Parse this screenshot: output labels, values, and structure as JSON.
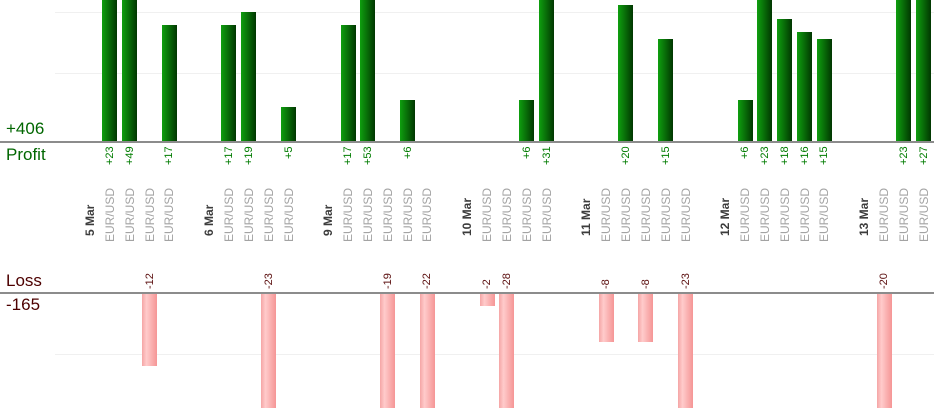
{
  "colors": {
    "profit_text": "#006600",
    "profit_value_text": "#007c00",
    "loss_text": "#4d0000",
    "loss_value_text": "#5c1010",
    "date_text": "#3c3c3c",
    "symbol_text": "#a3a3a3",
    "axis_line": "#8c8c8c",
    "gridline": "#f0f0f0",
    "profit_bar_start": "#0f9f0f",
    "profit_bar_mid": "#0c8a0c",
    "profit_bar_end": "#013701",
    "loss_bar_start": "#f5a5a5",
    "loss_bar_mid": "#ffcbcb",
    "loss_bar_end": "#f59595"
  },
  "chart_data": {
    "type": "bar",
    "layout": "split-axes: profits drawn upward from upper baseline, losses drawn downward from lower baseline, grouped by day",
    "profit_axis": {
      "label": "Profit",
      "total": "+406",
      "total_value": 406
    },
    "loss_axis": {
      "label": "Loss",
      "total": "-165",
      "total_value": -165
    },
    "groups": [
      {
        "date": "5 Mar",
        "trades": [
          {
            "symbol": "EUR/USD",
            "value": 23,
            "label": "+23"
          },
          {
            "symbol": "EUR/USD",
            "value": 49,
            "label": "+49"
          },
          {
            "symbol": "EUR/USD",
            "value": -12,
            "label": "-12"
          },
          {
            "symbol": "EUR/USD",
            "value": 17,
            "label": "+17"
          }
        ]
      },
      {
        "date": "6 Mar",
        "trades": [
          {
            "symbol": "EUR/USD",
            "value": 17,
            "label": "+17"
          },
          {
            "symbol": "EUR/USD",
            "value": 19,
            "label": "+19"
          },
          {
            "symbol": "EUR/USD",
            "value": -23,
            "label": "-23"
          },
          {
            "symbol": "EUR/USD",
            "value": 5,
            "label": "+5"
          }
        ]
      },
      {
        "date": "9 Mar",
        "trades": [
          {
            "symbol": "EUR/USD",
            "value": 17,
            "label": "+17"
          },
          {
            "symbol": "EUR/USD",
            "value": 53,
            "label": "+53"
          },
          {
            "symbol": "EUR/USD",
            "value": -19,
            "label": "-19"
          },
          {
            "symbol": "EUR/USD",
            "value": 6,
            "label": "+6"
          },
          {
            "symbol": "EUR/USD",
            "value": -22,
            "label": "-22"
          }
        ]
      },
      {
        "date": "10 Mar",
        "trades": [
          {
            "symbol": "EUR/USD",
            "value": -2,
            "label": "-2"
          },
          {
            "symbol": "EUR/USD",
            "value": -28,
            "label": "-28"
          },
          {
            "symbol": "EUR/USD",
            "value": 6,
            "label": "+6"
          },
          {
            "symbol": "EUR/USD",
            "value": 31,
            "label": "+31"
          }
        ]
      },
      {
        "date": "11 Mar",
        "trades": [
          {
            "symbol": "EUR/USD",
            "value": -8,
            "label": "-8"
          },
          {
            "symbol": "EUR/USD",
            "value": 20,
            "label": "+20"
          },
          {
            "symbol": "EUR/USD",
            "value": -8,
            "label": "-8"
          },
          {
            "symbol": "EUR/USD",
            "value": 15,
            "label": "+15"
          },
          {
            "symbol": "EUR/USD",
            "value": -23,
            "label": "-23"
          }
        ]
      },
      {
        "date": "12 Mar",
        "trades": [
          {
            "symbol": "EUR/USD",
            "value": 6,
            "label": "+6"
          },
          {
            "symbol": "EUR/USD",
            "value": 23,
            "label": "+23"
          },
          {
            "symbol": "EUR/USD",
            "value": 18,
            "label": "+18"
          },
          {
            "symbol": "EUR/USD",
            "value": 16,
            "label": "+16"
          },
          {
            "symbol": "EUR/USD",
            "value": 15,
            "label": "+15"
          }
        ]
      },
      {
        "date": "13 Mar",
        "trades": [
          {
            "symbol": "EUR/USD",
            "value": -20,
            "label": "-20"
          },
          {
            "symbol": "EUR/USD",
            "value": 23,
            "label": "+23"
          },
          {
            "symbol": "EUR/USD",
            "value": 27,
            "label": "+27"
          }
        ]
      }
    ]
  }
}
